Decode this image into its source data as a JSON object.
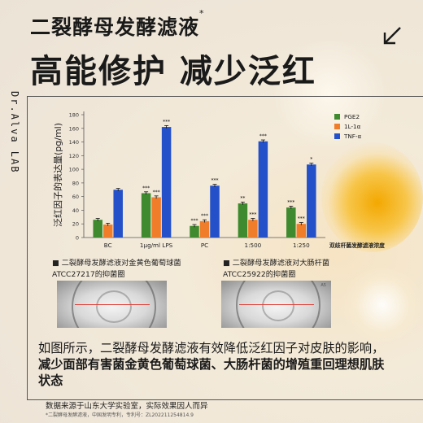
{
  "header": {
    "title_line1": "二裂酵母发酵滤液",
    "title_mark": "*",
    "title_line2": "高能修护 减少泛红",
    "arrow_icon": "arrow-down-left-icon"
  },
  "brand": {
    "side_label": "Dr.Alva LAB"
  },
  "chart_data": {
    "type": "bar",
    "ylabel": "泛红因子的表达量(pg/ml)",
    "xlabel": "双歧杆菌发酵滤液浓度",
    "ylim": [
      0,
      180
    ],
    "yticks": [
      0,
      20,
      40,
      60,
      80,
      100,
      120,
      140,
      160,
      180
    ],
    "categories": [
      "BC",
      "1μg/ml LPS",
      "PC",
      "1:500",
      "1:250"
    ],
    "series": [
      {
        "name": "PGE2",
        "color": "#3f8a2e",
        "values": [
          26,
          65,
          17,
          50,
          44
        ],
        "errors": [
          2,
          2,
          2,
          2,
          2
        ],
        "sig": [
          "",
          "***",
          "***",
          "**",
          "***"
        ]
      },
      {
        "name": "1L-1α",
        "color": "#f07d2a",
        "values": [
          19,
          59,
          24,
          26,
          20
        ],
        "errors": [
          2,
          2,
          2,
          2,
          2
        ],
        "sig": [
          "",
          "***",
          "***",
          "***",
          "***"
        ]
      },
      {
        "name": "TNF-α",
        "color": "#2451c9",
        "values": [
          70,
          162,
          76,
          141,
          107
        ],
        "errors": [
          2,
          2,
          2,
          2,
          2
        ],
        "sig": [
          "",
          "***",
          "***",
          "***",
          "*"
        ]
      }
    ]
  },
  "figures": [
    {
      "caption_line1": "二裂酵母发酵滤液对金黄色葡萄球菌",
      "caption_line2": "ATCC27217的抑菌圈"
    },
    {
      "caption_line1": "二裂酵母发酵滤液对大肠杆菌",
      "caption_line2": "ATCC25922的抑菌圈",
      "dish_mark": "A5"
    }
  ],
  "body": {
    "paragraph_plain": "如图所示，二裂酵母发酵滤液有效降低泛红因子对皮肤的影响，",
    "paragraph_bold": "减少面部有害菌金黄色葡萄球菌、大肠杆菌的增殖重回理想肌肤状态"
  },
  "footer": {
    "source_note": "数据来源于山东大学实验室，实际效果因人而异",
    "patent_note": "*二裂酵母发酵滤液，中国发明专利，专利号：ZL202211254814.9"
  }
}
